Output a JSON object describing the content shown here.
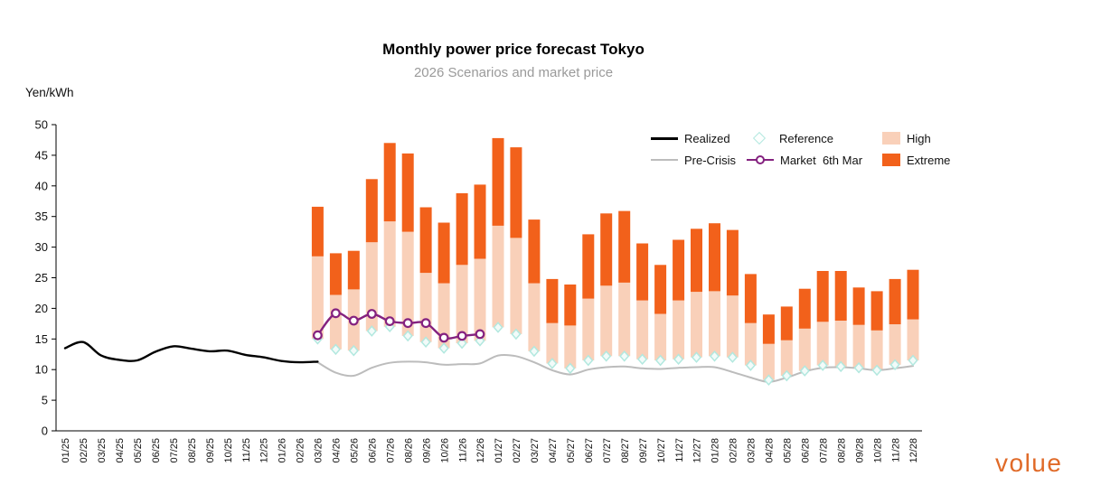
{
  "header": {
    "title": "Monthly power price forecast Tokyo",
    "subtitle": "2026 Scenarios and market price",
    "y_axis_unit": "Yen/kWh"
  },
  "legend": {
    "realized": "Realized",
    "reference": "Reference",
    "high": "High",
    "pre_crisis": "Pre-Crisis",
    "market": "Market  6th Mar",
    "extreme": "Extreme"
  },
  "branding": {
    "logo": "volue"
  },
  "colors": {
    "realized": "#000000",
    "pre_crisis": "#bcbcbc",
    "market": "#84217f",
    "reference_stroke": "#b2e8df",
    "reference_fill": "#f2fbf9",
    "high": "#f9d0b9",
    "extreme": "#f2611b",
    "axis": "#000000",
    "subtitle_gray": "#9a9a9a",
    "logo_orange": "#e06a28"
  },
  "chart_data": {
    "type": "combo (smoothed lines + floating stacked scenario bars + diamond markers)",
    "title": "Monthly power price forecast Tokyo",
    "subtitle": "2026 Scenarios and market price",
    "ylabel": "Yen/kWh",
    "y_axis": {
      "min": 0,
      "max": 50,
      "step": 5
    },
    "grid": "off",
    "legend_position": "top-right, 2 rows x 3 columns",
    "months": [
      "01/25",
      "02/25",
      "03/25",
      "04/25",
      "05/25",
      "06/25",
      "07/25",
      "08/25",
      "09/25",
      "10/25",
      "11/25",
      "12/25",
      "01/26",
      "02/26",
      "03/26",
      "04/26",
      "05/26",
      "06/26",
      "07/26",
      "08/26",
      "09/26",
      "10/26",
      "11/26",
      "12/26",
      "01/27",
      "02/27",
      "03/27",
      "04/27",
      "05/27",
      "06/27",
      "07/27",
      "08/27",
      "09/27",
      "10/27",
      "11/27",
      "12/27",
      "01/28",
      "02/28",
      "03/28",
      "04/28",
      "05/28",
      "06/28",
      "07/28",
      "08/28",
      "09/28",
      "10/28",
      "11/28",
      "12/28"
    ],
    "series": [
      {
        "name": "Realized",
        "type": "line",
        "start": "01/25",
        "values": [
          13.5,
          14.5,
          12.3,
          11.6,
          11.5,
          12.9,
          13.8,
          13.4,
          13.0,
          13.1,
          12.4,
          12.0,
          11.4,
          11.2,
          11.3
        ]
      },
      {
        "name": "Pre-Crisis",
        "type": "line",
        "start": "03/26",
        "values": [
          11.2,
          9.5,
          9.0,
          10.3,
          11.1,
          11.3,
          11.2,
          10.8,
          10.9,
          11.0,
          12.3,
          12.2,
          11.2,
          9.9,
          9.2,
          10.0,
          10.4,
          10.5,
          10.2,
          10.1,
          10.3,
          10.4,
          10.4,
          9.6,
          8.7,
          8.0,
          8.7,
          9.7,
          10.3,
          10.4,
          10.2,
          9.9,
          10.2,
          10.6
        ]
      },
      {
        "name": "Market 6th Mar",
        "type": "line-circle-markers",
        "start": "03/26",
        "values": [
          15.6,
          19.2,
          18.0,
          19.1,
          17.9,
          17.6,
          17.6,
          15.2,
          15.5,
          15.8
        ]
      },
      {
        "name": "Reference",
        "type": "diamond-markers",
        "start": "03/26",
        "values": [
          15.0,
          13.3,
          13.1,
          16.3,
          17.0,
          15.5,
          14.5,
          13.5,
          14.3,
          14.7,
          16.9,
          15.8,
          13.0,
          11.0,
          10.2,
          11.5,
          12.2,
          12.2,
          11.7,
          11.5,
          11.7,
          12.0,
          12.2,
          12.0,
          10.7,
          8.3,
          9.0,
          9.8,
          10.7,
          10.5,
          10.3,
          9.9,
          10.8,
          11.5
        ]
      },
      {
        "name": "High",
        "type": "bar-segment (from Reference value up to High value)",
        "start": "03/26",
        "values": [
          28.5,
          22.2,
          23.1,
          30.8,
          34.2,
          32.5,
          25.8,
          24.1,
          27.1,
          28.1,
          33.5,
          31.5,
          24.1,
          17.6,
          17.2,
          21.6,
          23.7,
          24.2,
          21.3,
          19.1,
          21.3,
          22.7,
          22.8,
          22.1,
          17.6,
          14.2,
          14.8,
          16.7,
          17.8,
          18.0,
          17.3,
          16.4,
          17.4,
          18.2
        ]
      },
      {
        "name": "Extreme",
        "type": "bar-segment (from High value up to Extreme value)",
        "start": "03/26",
        "values": [
          36.6,
          29.0,
          29.4,
          41.1,
          47.0,
          45.3,
          36.5,
          34.0,
          38.8,
          40.2,
          47.8,
          46.3,
          34.5,
          24.8,
          23.9,
          32.1,
          35.5,
          35.9,
          30.6,
          27.1,
          31.2,
          33.0,
          33.9,
          32.8,
          25.6,
          19.0,
          20.3,
          23.2,
          26.1,
          26.1,
          23.4,
          22.8,
          24.8,
          26.3
        ]
      }
    ]
  }
}
